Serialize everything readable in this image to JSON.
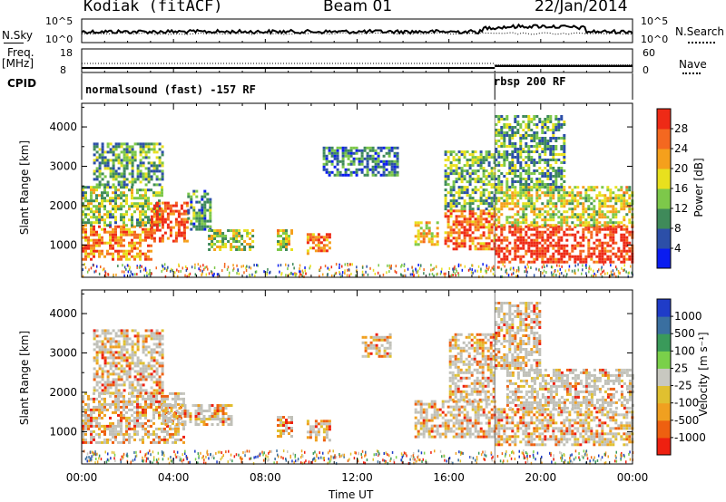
{
  "header": {
    "station": "Kodiak (fitACF)",
    "beam": "Beam 01",
    "date": "22/Jan/2014"
  },
  "nsky_panel": {
    "left_label": "N.Sky",
    "right_label": "N.Search",
    "left_ticks": [
      "10^5",
      "10^0"
    ],
    "right_ticks": [
      "10^5",
      "10^0"
    ]
  },
  "freq_panel": {
    "left_label_1": "Freq.",
    "left_label_2": "[MHz]",
    "right_label": "Nave",
    "left_ticks": [
      "18",
      "8"
    ],
    "right_ticks": [
      "60",
      "0"
    ]
  },
  "cpid_panel": {
    "label": "CPID",
    "modes": [
      {
        "name": "normalsound (fast)  -157 RF",
        "start_hour": 0
      },
      {
        "name": "rbsp  200 RF",
        "start_hour": 18
      }
    ]
  },
  "time_axis": {
    "label": "Time UT",
    "ticks": [
      "00:00",
      "04:00",
      "08:00",
      "12:00",
      "16:00",
      "20:00",
      "00:00"
    ]
  },
  "colors": {
    "power_scale": [
      "#0a1cf0",
      "#2c4fa8",
      "#3f8a5a",
      "#7dc84a",
      "#e8e01e",
      "#f5a01c",
      "#f46820",
      "#ee2a16"
    ],
    "velocity_scale": [
      "#1f3cc8",
      "#3a6fa0",
      "#3a9a5a",
      "#7ad04a",
      "#c8c8c0",
      "#e0c030",
      "#f0a020",
      "#ee6010",
      "#ee2010"
    ],
    "ground_scatter": "#c0c0b8"
  },
  "chart_data": [
    {
      "type": "heatmap",
      "name": "power",
      "xlabel": "",
      "ylabel": "Slant Range [km]",
      "xlim": [
        0,
        24
      ],
      "ylim": [
        180,
        4600
      ],
      "yticks": [
        "1000",
        "2000",
        "3000",
        "4000"
      ],
      "colorbar": {
        "label": "Power [dB]",
        "ticks": [
          "4",
          "8",
          "12",
          "16",
          "20",
          "24",
          "28"
        ]
      },
      "regions": [
        {
          "t0": 0.0,
          "t1": 3.0,
          "r0": 650,
          "r1": 1500,
          "level": 0.75
        },
        {
          "t0": 0.0,
          "t1": 3.5,
          "r0": 1500,
          "r1": 2500,
          "level": 0.45
        },
        {
          "t0": 0.5,
          "t1": 3.5,
          "r0": 2500,
          "r1": 3600,
          "level": 0.35
        },
        {
          "t0": 3.0,
          "t1": 4.6,
          "r0": 1100,
          "r1": 2100,
          "level": 0.85
        },
        {
          "t0": 4.6,
          "t1": 5.6,
          "r0": 1400,
          "r1": 2400,
          "level": 0.3
        },
        {
          "t0": 5.5,
          "t1": 7.5,
          "r0": 900,
          "r1": 1400,
          "level": 0.5
        },
        {
          "t0": 8.5,
          "t1": 9.2,
          "r0": 900,
          "r1": 1400,
          "level": 0.55
        },
        {
          "t0": 9.8,
          "t1": 10.8,
          "r0": 800,
          "r1": 1300,
          "level": 0.8
        },
        {
          "t0": 10.5,
          "t1": 13.8,
          "r0": 2800,
          "r1": 3500,
          "level": 0.25
        },
        {
          "t0": 14.5,
          "t1": 15.5,
          "r0": 1000,
          "r1": 1600,
          "level": 0.65
        },
        {
          "t0": 15.8,
          "t1": 18.0,
          "r0": 900,
          "r1": 1900,
          "level": 0.8
        },
        {
          "t0": 15.8,
          "t1": 18.0,
          "r0": 1900,
          "r1": 3400,
          "level": 0.4
        },
        {
          "t0": 18.0,
          "t1": 24.0,
          "r0": 600,
          "r1": 1500,
          "level": 0.95
        },
        {
          "t0": 18.0,
          "t1": 24.0,
          "r0": 1500,
          "r1": 2500,
          "level": 0.55
        },
        {
          "t0": 18.0,
          "t1": 21.0,
          "r0": 2500,
          "r1": 4300,
          "level": 0.35
        }
      ]
    },
    {
      "type": "heatmap",
      "name": "velocity",
      "xlabel": "Time UT",
      "ylabel": "Slant Range [km]",
      "xlim": [
        0,
        24
      ],
      "ylim": [
        180,
        4600
      ],
      "yticks": [
        "1000",
        "2000",
        "3000",
        "4000"
      ],
      "colorbar": {
        "label": "Velocity [m s⁻¹]",
        "ticks": [
          "1000",
          "500",
          "100",
          "25",
          "-25",
          "-100",
          "-500",
          "-1000"
        ]
      },
      "regions": [
        {
          "t0": 0.0,
          "t1": 4.5,
          "r0": 700,
          "r1": 2000,
          "level": 0.5
        },
        {
          "t0": 0.5,
          "t1": 3.5,
          "r0": 2000,
          "r1": 3600,
          "level": 0.65
        },
        {
          "t0": 3.5,
          "t1": 6.5,
          "r0": 1200,
          "r1": 1700,
          "level": 0.7
        },
        {
          "t0": 8.5,
          "t1": 9.2,
          "r0": 900,
          "r1": 1400,
          "level": 0.25
        },
        {
          "t0": 9.8,
          "t1": 10.8,
          "r0": 800,
          "r1": 1300,
          "level": 0.2
        },
        {
          "t0": 12.2,
          "t1": 13.5,
          "r0": 2900,
          "r1": 3500,
          "level": 0.5
        },
        {
          "t0": 14.5,
          "t1": 18.0,
          "r0": 900,
          "r1": 1800,
          "level": 0.6
        },
        {
          "t0": 16.0,
          "t1": 18.0,
          "r0": 1800,
          "r1": 3500,
          "level": 0.55
        },
        {
          "t0": 18.0,
          "t1": 24.0,
          "r0": 700,
          "r1": 1600,
          "level": 0.5
        },
        {
          "t0": 18.5,
          "t1": 24.0,
          "r0": 1600,
          "r1": 2600,
          "level": 0.75
        },
        {
          "t0": 18.0,
          "t1": 20.0,
          "r0": 2600,
          "r1": 4300,
          "level": 0.7
        }
      ]
    }
  ]
}
